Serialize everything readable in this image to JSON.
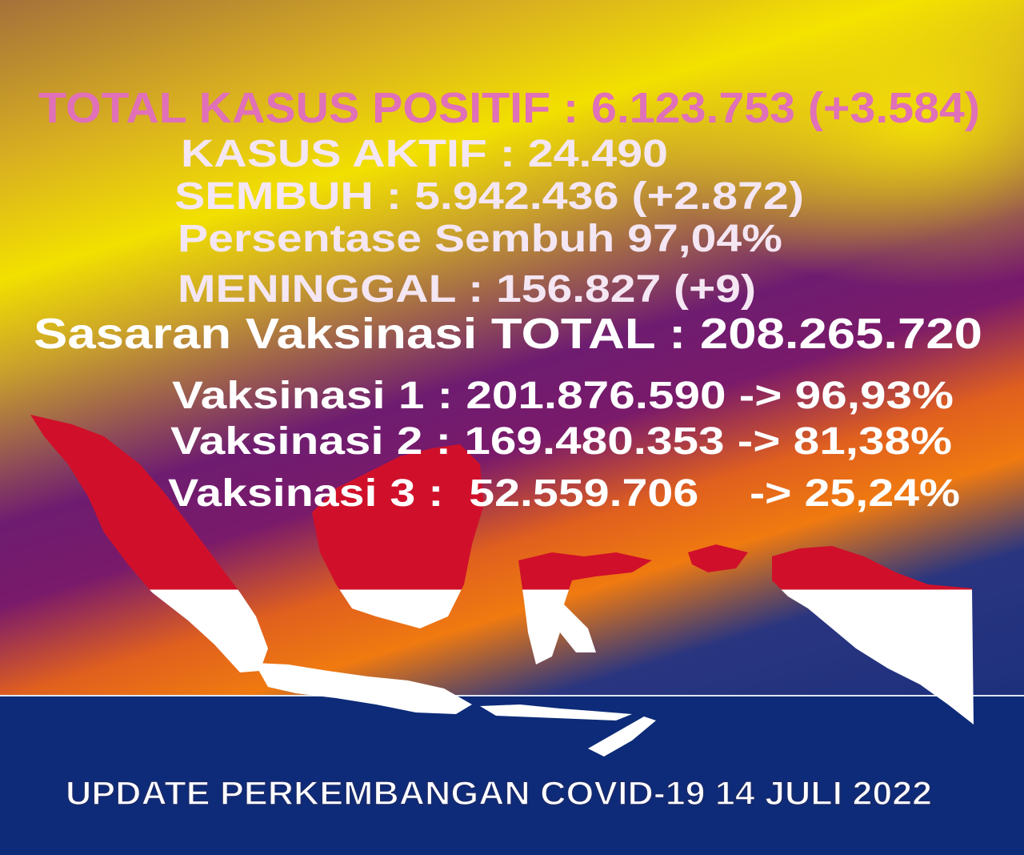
{
  "stats": {
    "total_positive": "TOTAL KASUS POSITIF : 6.123.753 (+3.584)",
    "active": "KASUS AKTIF : 24.490",
    "recovered": "SEMBUH : 5.942.436 (+2.872)",
    "recovery_rate": "Persentase Sembuh 97,04%",
    "deaths": "MENINGGAL : 156.827 (+9)"
  },
  "vaccination": {
    "target_total": "Sasaran Vaksinasi TOTAL : 208.265.720",
    "dose1": "Vaksinasi 1 : 201.876.590 -> 96,93%",
    "dose2": "Vaksinasi 2 : 169.480.353 -> 81,38%",
    "dose3": "Vaksinasi 3 :  52.559.706    -> 25,24%"
  },
  "footer": "UPDATE PERKEMBANGAN COVID-19 14 JULI 2022",
  "colors": {
    "headline_pink": "#e070b8",
    "text_light": "#f4e6f2",
    "flag_red": "#d0102a",
    "flag_white": "#ffffff",
    "navy": "#0d2b78",
    "yellow": "#f2e000",
    "purple": "#6e1c70",
    "orange": "#f07a10"
  },
  "map_icon": "indonesia-map-flag"
}
